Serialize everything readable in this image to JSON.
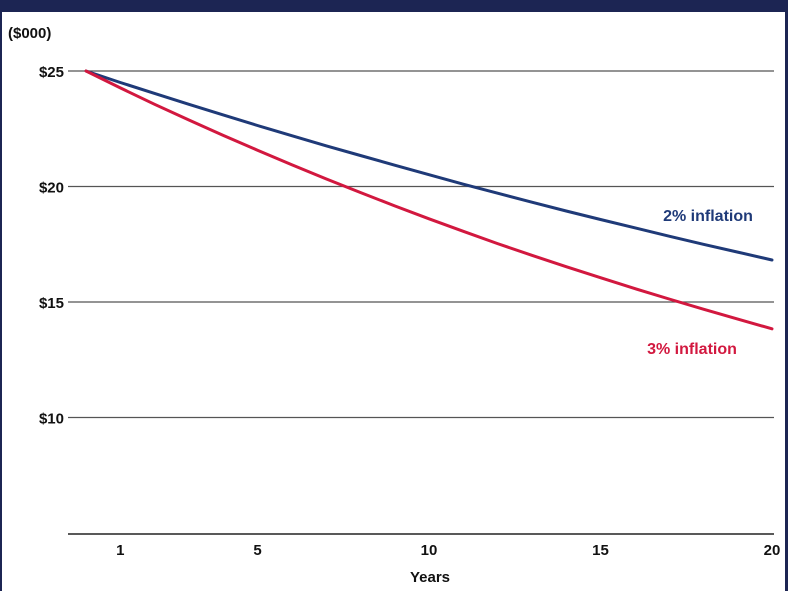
{
  "chart_data": {
    "type": "line",
    "unit_label": "($000)",
    "xlabel": "Years",
    "ylabel": "",
    "x_ticks": [
      1,
      5,
      10,
      15,
      20
    ],
    "y_ticks": [
      10,
      15,
      20,
      25
    ],
    "y_tick_labels": [
      "$10",
      "$15",
      "$20",
      "$25"
    ],
    "xlim": [
      0,
      20
    ],
    "ylim": [
      5,
      25
    ],
    "grid": "horizontal",
    "series": [
      {
        "name": "2% inflation",
        "color": "#1f3a78",
        "x": [
          0,
          1,
          2,
          3,
          4,
          5,
          6,
          7,
          8,
          9,
          10,
          11,
          12,
          13,
          14,
          15,
          16,
          17,
          18,
          19,
          20
        ],
        "values": [
          25.0,
          24.5,
          24.03,
          23.56,
          23.1,
          22.64,
          22.2,
          21.76,
          21.34,
          20.92,
          20.51,
          20.1,
          19.71,
          19.32,
          18.94,
          18.57,
          18.21,
          17.85,
          17.5,
          17.16,
          16.82
        ]
      },
      {
        "name": "3% inflation",
        "color": "#d2183f",
        "x": [
          0,
          1,
          2,
          3,
          4,
          5,
          6,
          7,
          8,
          9,
          10,
          11,
          12,
          13,
          14,
          15,
          16,
          17,
          18,
          19,
          20
        ],
        "values": [
          25.0,
          24.27,
          23.56,
          22.88,
          22.21,
          21.57,
          20.94,
          20.33,
          19.74,
          19.16,
          18.6,
          18.06,
          17.53,
          17.02,
          16.53,
          16.05,
          15.58,
          15.13,
          14.69,
          14.26,
          13.84
        ]
      }
    ]
  }
}
